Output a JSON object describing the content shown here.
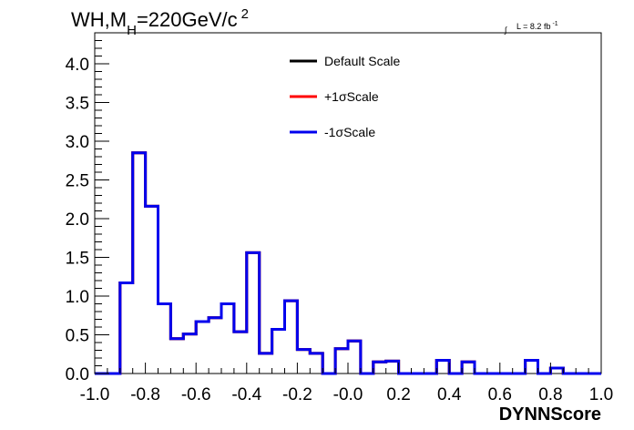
{
  "chart_data": {
    "type": "step",
    "title_parts": {
      "a": "WH,M",
      "sub": "H",
      "b": "=220GeV/c",
      "sup": "2"
    },
    "lumi": {
      "integral_symbol": "∫",
      "text": "L = 8.2 fb",
      "sup": "-1"
    },
    "xlabel": "DYNNScore",
    "ylabel": "",
    "xlim": [
      -1.0,
      1.0
    ],
    "ylim": [
      0.0,
      4.4
    ],
    "x_ticks": [
      "-1.0",
      "-0.8",
      "-0.6",
      "-0.4",
      "-0.2",
      "-0.0",
      "0.2",
      "0.4",
      "0.6",
      "0.8",
      "1.0"
    ],
    "y_ticks": [
      "0.0",
      "0.5",
      "1.0",
      "1.5",
      "2.0",
      "2.5",
      "3.0",
      "3.5",
      "4.0"
    ],
    "grid": false,
    "legend_position": "top-center",
    "bins": 40,
    "series": [
      {
        "name": "Default Scale",
        "color": "#000000",
        "values": [
          0,
          0,
          1.17,
          2.85,
          2.16,
          0.9,
          0.45,
          0.51,
          0.67,
          0.72,
          0.9,
          0.54,
          1.56,
          0.26,
          0.57,
          0.94,
          0.31,
          0.26,
          0,
          0.32,
          0.42,
          0,
          0.15,
          0.16,
          0,
          0,
          0,
          0.17,
          0,
          0.15,
          0,
          0,
          0,
          0,
          0.17,
          0,
          0.07,
          0,
          0,
          0
        ]
      },
      {
        "name": "+1σScale",
        "color": "#ff0000",
        "values": [
          0,
          0,
          1.17,
          2.85,
          2.16,
          0.9,
          0.45,
          0.51,
          0.67,
          0.72,
          0.9,
          0.54,
          1.56,
          0.26,
          0.57,
          0.94,
          0.31,
          0.26,
          0,
          0.32,
          0.42,
          0,
          0.15,
          0.16,
          0,
          0,
          0,
          0.17,
          0,
          0.15,
          0,
          0,
          0,
          0,
          0.17,
          0,
          0.07,
          0,
          0,
          0
        ]
      },
      {
        "name": "-1σScale",
        "color": "#0000ee",
        "values": [
          0,
          0,
          1.17,
          2.85,
          2.16,
          0.9,
          0.45,
          0.51,
          0.67,
          0.72,
          0.9,
          0.54,
          1.56,
          0.26,
          0.57,
          0.94,
          0.31,
          0.26,
          0,
          0.32,
          0.42,
          0,
          0.15,
          0.16,
          0,
          0,
          0,
          0.17,
          0,
          0.15,
          0,
          0,
          0,
          0,
          0.17,
          0,
          0.07,
          0,
          0,
          0
        ]
      }
    ]
  }
}
